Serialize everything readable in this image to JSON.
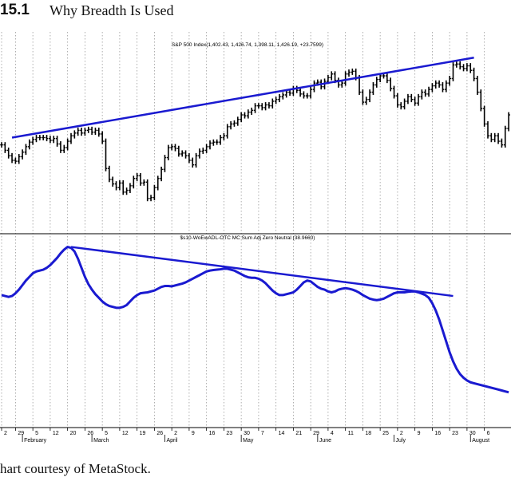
{
  "figure": {
    "number": "15.1",
    "title": "Why Breadth Is Used",
    "caption": "hart courtesy of MetaStock."
  },
  "chart_data": [
    {
      "type": "bar",
      "style": "ohlc",
      "title": "S&P 500 Index(1,402.43, 1,426.74, 1,398.11, 1,426.19, +23.7599)",
      "grid": "vertical-dotted",
      "bar_color": "#000000",
      "trendline_color": "#1a1ad0",
      "index_start": 0,
      "index_end": 146,
      "ylim": [
        1260,
        1440
      ],
      "values": [
        1342,
        1336,
        1330,
        1325,
        1324,
        1329,
        1334,
        1340,
        1345,
        1348,
        1350,
        1350,
        1350,
        1349,
        1347,
        1349,
        1343,
        1336,
        1339,
        1346,
        1352,
        1355,
        1358,
        1355,
        1358,
        1359,
        1356,
        1358,
        1354,
        1346,
        1316,
        1304,
        1299,
        1295,
        1300,
        1290,
        1292,
        1297,
        1305,
        1308,
        1300,
        1301,
        1283,
        1284,
        1295,
        1305,
        1315,
        1328,
        1339,
        1340,
        1338,
        1332,
        1333,
        1330,
        1325,
        1320,
        1330,
        1335,
        1336,
        1340,
        1344,
        1345,
        1345,
        1350,
        1352,
        1362,
        1365,
        1366,
        1370,
        1375,
        1374,
        1378,
        1380,
        1385,
        1385,
        1383,
        1386,
        1385,
        1390,
        1392,
        1395,
        1397,
        1400,
        1399,
        1404,
        1402,
        1398,
        1396,
        1396,
        1403,
        1410,
        1411,
        1406,
        1412,
        1416,
        1420,
        1413,
        1408,
        1410,
        1420,
        1422,
        1423,
        1416,
        1400,
        1389,
        1392,
        1400,
        1408,
        1414,
        1418,
        1418,
        1413,
        1404,
        1396,
        1386,
        1384,
        1390,
        1395,
        1392,
        1388,
        1395,
        1400,
        1398,
        1403,
        1407,
        1410,
        1408,
        1403,
        1410,
        1415,
        1430,
        1431,
        1428,
        1426,
        1429,
        1424,
        1415,
        1400,
        1382,
        1365,
        1352,
        1348,
        1352,
        1346,
        1342,
        1360,
        1375,
        1365,
        1346,
        1350
      ],
      "trendline": {
        "from": [
          3,
          1350
        ],
        "to": [
          136,
          1438
        ]
      }
    },
    {
      "type": "line",
      "title": "$s10-WoEwADL-OTC MC Sum Adj Zero Neutral (38.9660)",
      "grid": "vertical-dotted",
      "line_color": "#1a1ad0",
      "index_start": 0,
      "index_end": 146,
      "ylim": [
        -60,
        30
      ],
      "values": [
        1.5,
        1.0,
        0.5,
        1.0,
        2.5,
        4.5,
        7.0,
        9.5,
        11.5,
        13.5,
        14.5,
        15.0,
        15.5,
        16.5,
        18.0,
        20.0,
        22.0,
        24.5,
        26.5,
        28.0,
        27.5,
        25.5,
        21.5,
        16.5,
        11.5,
        7.5,
        4.5,
        2.0,
        0.0,
        -2.0,
        -3.5,
        -4.5,
        -5.0,
        -5.5,
        -5.5,
        -5.0,
        -4.0,
        -2.0,
        0.0,
        1.5,
        2.5,
        2.8,
        3.0,
        3.5,
        4.0,
        5.0,
        6.0,
        6.5,
        6.5,
        6.3,
        6.8,
        7.3,
        7.8,
        8.5,
        9.5,
        10.5,
        11.5,
        12.5,
        13.5,
        14.5,
        15.0,
        15.3,
        15.5,
        15.7,
        16.0,
        16.0,
        15.5,
        15.0,
        14.0,
        13.0,
        12.0,
        11.3,
        11.0,
        11.0,
        10.5,
        9.5,
        8.0,
        6.0,
        4.0,
        2.5,
        1.5,
        1.5,
        2.0,
        2.5,
        3.0,
        4.5,
        6.5,
        8.5,
        9.5,
        9.0,
        7.5,
        6.0,
        5.0,
        4.5,
        3.5,
        3.0,
        3.5,
        4.5,
        5.0,
        5.3,
        5.0,
        4.5,
        3.8,
        2.8,
        1.5,
        0.5,
        -0.5,
        -1.0,
        -1.3,
        -1.0,
        -0.5,
        0.5,
        1.5,
        2.5,
        3.0,
        3.0,
        3.0,
        3.3,
        3.5,
        3.5,
        3.0,
        2.3,
        1.5,
        0.0,
        -3.0,
        -7.0,
        -12.0,
        -18.0,
        -24.0,
        -30.0,
        -35.0,
        -39.0,
        -42.0,
        -44.0,
        -45.5,
        -46.5,
        -47.0,
        -47.5,
        -48.0,
        -48.5,
        -49.0,
        -49.5,
        -50.0,
        -50.5,
        -51.0,
        -51.5,
        -52.0
      ],
      "trendline": {
        "from": [
          20,
          28.0
        ],
        "to": [
          130,
          1.0
        ]
      }
    }
  ],
  "x_axis": {
    "day_ticks": [
      {
        "i": 0,
        "label": "2"
      },
      {
        "i": 4,
        "label": "29"
      },
      {
        "i": 9,
        "label": "5"
      },
      {
        "i": 14,
        "label": "12"
      },
      {
        "i": 19,
        "label": "20"
      },
      {
        "i": 24,
        "label": "26"
      },
      {
        "i": 29,
        "label": "5"
      },
      {
        "i": 34,
        "label": "12"
      },
      {
        "i": 39,
        "label": "19"
      },
      {
        "i": 44,
        "label": "26"
      },
      {
        "i": 49,
        "label": "2"
      },
      {
        "i": 54,
        "label": "9"
      },
      {
        "i": 59,
        "label": "16"
      },
      {
        "i": 64,
        "label": "23"
      },
      {
        "i": 69,
        "label": "30"
      },
      {
        "i": 74,
        "label": "7"
      },
      {
        "i": 79,
        "label": "14"
      },
      {
        "i": 84,
        "label": "21"
      },
      {
        "i": 89,
        "label": "29"
      },
      {
        "i": 94,
        "label": "4"
      },
      {
        "i": 99,
        "label": "11"
      },
      {
        "i": 104,
        "label": "18"
      },
      {
        "i": 109,
        "label": "25"
      },
      {
        "i": 114,
        "label": "2"
      },
      {
        "i": 119,
        "label": "9"
      },
      {
        "i": 124,
        "label": "16"
      },
      {
        "i": 129,
        "label": "23"
      },
      {
        "i": 134,
        "label": "30"
      },
      {
        "i": 139,
        "label": "6"
      }
    ],
    "month_ticks": [
      {
        "i": 6,
        "label": "February"
      },
      {
        "i": 26,
        "label": "March"
      },
      {
        "i": 47,
        "label": "April"
      },
      {
        "i": 69,
        "label": "May"
      },
      {
        "i": 91,
        "label": "June"
      },
      {
        "i": 113,
        "label": "July"
      },
      {
        "i": 135,
        "label": "August"
      }
    ]
  }
}
